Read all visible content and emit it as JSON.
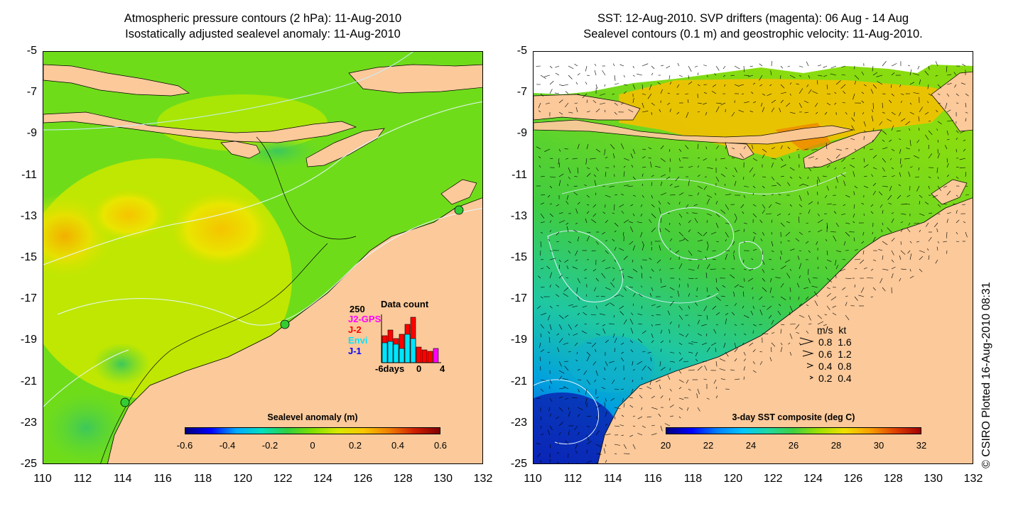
{
  "left_panel": {
    "title_line1": "Atmospheric pressure contours (2 hPa): 11-Aug-2010",
    "title_line2": "Isostatically adjusted sealevel anomaly: 11-Aug-2010",
    "y_ticks": [
      "-5",
      "-7",
      "-9",
      "-11",
      "-13",
      "-15",
      "-17",
      "-19",
      "-21",
      "-23",
      "-25"
    ],
    "x_ticks": [
      "110",
      "112",
      "114",
      "116",
      "118",
      "120",
      "122",
      "124",
      "126",
      "128",
      "130",
      "132"
    ],
    "colorbar": {
      "title": "Sealevel anomaly (m)",
      "ticks": [
        "-0.6",
        "-0.4",
        "-0.2",
        "0",
        "0.2",
        "0.4",
        "0.6"
      ],
      "range": [
        -0.6,
        0.6
      ]
    },
    "data_count": {
      "title": "Data count",
      "max_label": "250",
      "x_labels": [
        "-6days",
        "0",
        "4"
      ],
      "series": [
        {
          "name": "J2-GPS",
          "color": "#ff00ff"
        },
        {
          "name": "J-2",
          "color": "#ff0000"
        },
        {
          "name": "Envi",
          "color": "#00e5ff"
        },
        {
          "name": "J-1",
          "color": "#0000ff"
        }
      ]
    }
  },
  "right_panel": {
    "title_line1": "SST: 12-Aug-2010. SVP drifters (magenta): 06 Aug - 14 Aug",
    "title_line2": "Sealevel contours (0.1 m) and geostrophic velocity: 11-Aug-2010.",
    "y_ticks": [
      "-5",
      "-7",
      "-9",
      "-11",
      "-13",
      "-15",
      "-17",
      "-19",
      "-21",
      "-23",
      "-25"
    ],
    "x_ticks": [
      "110",
      "112",
      "114",
      "116",
      "118",
      "120",
      "122",
      "124",
      "126",
      "128",
      "130",
      "132"
    ],
    "colorbar": {
      "title": "3-day SST composite (deg C)",
      "ticks": [
        "20",
        "22",
        "24",
        "26",
        "28",
        "30",
        "32"
      ],
      "range": [
        20,
        32
      ]
    },
    "velocity_legend": {
      "header": "m/s  kt",
      "rows": [
        "0.8  1.6",
        "0.6  1.2",
        "0.4  0.8",
        "0.2  0.4"
      ]
    }
  },
  "credit": "© CSIRO Plotted 16-Aug-2010 08:31",
  "colors": {
    "land": "#fbc99a",
    "ocean_left": "#8ee000",
    "ocean_right": "#33cc33"
  }
}
